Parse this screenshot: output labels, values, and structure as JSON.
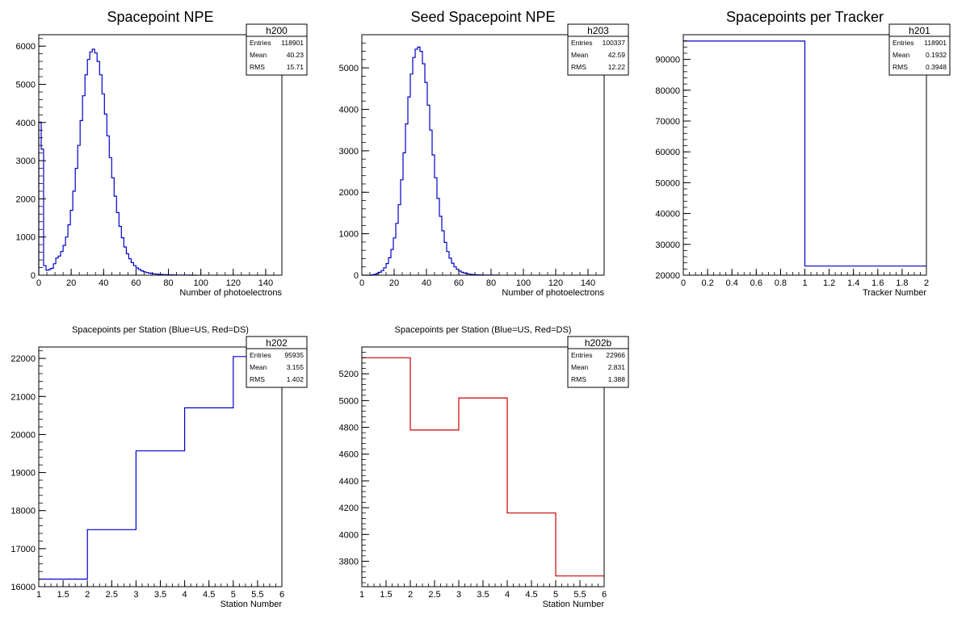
{
  "chart_data": [
    {
      "type": "histogram",
      "title": "Spacepoint NPE",
      "xlabel": "Number of photoelectrons",
      "xlim": [
        0,
        150
      ],
      "ylim": [
        0,
        6300
      ],
      "xticks": [
        0,
        20,
        40,
        60,
        80,
        100,
        120,
        140
      ],
      "yticks": [
        0,
        1000,
        2000,
        3000,
        4000,
        5000,
        6000
      ],
      "bin_width": 1.5,
      "line_color": "#0000cc",
      "values": [
        4010,
        3300,
        250,
        130,
        150,
        180,
        300,
        450,
        500,
        620,
        780,
        1000,
        1320,
        1700,
        2200,
        2800,
        3400,
        4050,
        4700,
        5250,
        5650,
        5850,
        5920,
        5820,
        5600,
        5250,
        4750,
        4220,
        3650,
        3080,
        2550,
        2070,
        1640,
        1280,
        980,
        740,
        560,
        430,
        330,
        250,
        190,
        150,
        115,
        90,
        70,
        55,
        45,
        35,
        28,
        22,
        18,
        15,
        12,
        10,
        8,
        6,
        5,
        4,
        3,
        3,
        2,
        2,
        1,
        1,
        1
      ],
      "stats": {
        "name": "h200",
        "rows": [
          [
            "Entries",
            "118901"
          ],
          [
            "Mean",
            "40.23"
          ],
          [
            "RMS",
            "15.71"
          ]
        ]
      }
    },
    {
      "type": "histogram",
      "title": "Seed Spacepoint NPE",
      "xlabel": "Number of photoelectrons",
      "xlim": [
        0,
        150
      ],
      "ylim": [
        0,
        5800
      ],
      "xticks": [
        0,
        20,
        40,
        60,
        80,
        100,
        120,
        140
      ],
      "yticks": [
        0,
        1000,
        2000,
        3000,
        4000,
        5000
      ],
      "bin_width": 1.5,
      "line_color": "#0000cc",
      "values": [
        0,
        0,
        0,
        0,
        10,
        20,
        40,
        70,
        110,
        180,
        280,
        420,
        620,
        900,
        1250,
        1700,
        2300,
        2950,
        3650,
        4300,
        4850,
        5250,
        5450,
        5500,
        5400,
        5100,
        4650,
        4100,
        3500,
        2900,
        2350,
        1850,
        1420,
        1070,
        790,
        570,
        410,
        290,
        200,
        140,
        100,
        70,
        50,
        35,
        25,
        18,
        13,
        9,
        7,
        5,
        4,
        3,
        2,
        2,
        1,
        1
      ],
      "stats": {
        "name": "h203",
        "rows": [
          [
            "Entries",
            "100337"
          ],
          [
            "Mean",
            "42.59"
          ],
          [
            "RMS",
            "12.22"
          ]
        ]
      }
    },
    {
      "type": "histogram",
      "title": "Spacepoints per Tracker",
      "xlabel": "Tracker Number",
      "xlim": [
        0,
        2
      ],
      "ylim": [
        20000,
        98000
      ],
      "xticks": [
        0,
        0.2,
        0.4,
        0.6,
        0.8,
        1,
        1.2,
        1.4,
        1.6,
        1.8,
        2
      ],
      "yticks": [
        20000,
        30000,
        40000,
        50000,
        60000,
        70000,
        80000,
        90000
      ],
      "bins": [
        [
          0,
          1,
          95935
        ],
        [
          1,
          2,
          22966
        ]
      ],
      "line_color": "#0000cc",
      "stats": {
        "name": "h201",
        "rows": [
          [
            "Entries",
            "118901"
          ],
          [
            "Mean",
            "0.1932"
          ],
          [
            "RMS",
            "0.3948"
          ]
        ]
      }
    },
    {
      "type": "histogram",
      "title": "Spacepoints per Station (Blue=US, Red=DS)",
      "xlabel": "Station Number",
      "xlim": [
        1,
        6
      ],
      "ylim": [
        16000,
        22300
      ],
      "xticks": [
        1,
        1.5,
        2,
        2.5,
        3,
        3.5,
        4,
        4.5,
        5,
        5.5,
        6
      ],
      "yticks": [
        16000,
        17000,
        18000,
        19000,
        20000,
        21000,
        22000
      ],
      "bins": [
        [
          1,
          2,
          16200
        ],
        [
          2,
          3,
          17500
        ],
        [
          3,
          4,
          19570
        ],
        [
          4,
          5,
          20700
        ],
        [
          5,
          6,
          22050
        ]
      ],
      "line_color": "#0000cc",
      "stats": {
        "name": "h202",
        "rows": [
          [
            "Entries",
            "95935"
          ],
          [
            "Mean",
            "3.155"
          ],
          [
            "RMS",
            "1.402"
          ]
        ]
      }
    },
    {
      "type": "histogram",
      "title": "Spacepoints per Station (Blue=US, Red=DS)",
      "xlabel": "Station Number",
      "xlim": [
        1,
        6
      ],
      "ylim": [
        3610,
        5400
      ],
      "xticks": [
        1,
        1.5,
        2,
        2.5,
        3,
        3.5,
        4,
        4.5,
        5,
        5.5,
        6
      ],
      "yticks": [
        3800,
        4000,
        4200,
        4400,
        4600,
        4800,
        5000,
        5200
      ],
      "bins": [
        [
          1,
          2,
          5320
        ],
        [
          2,
          3,
          4780
        ],
        [
          3,
          4,
          5020
        ],
        [
          4,
          5,
          4160
        ],
        [
          5,
          6,
          3690
        ]
      ],
      "line_color": "#cc0000",
      "stats": {
        "name": "h202b",
        "rows": [
          [
            "Entries",
            "22966"
          ],
          [
            "Mean",
            "2.831"
          ],
          [
            "RMS",
            "1.388"
          ]
        ]
      }
    }
  ]
}
